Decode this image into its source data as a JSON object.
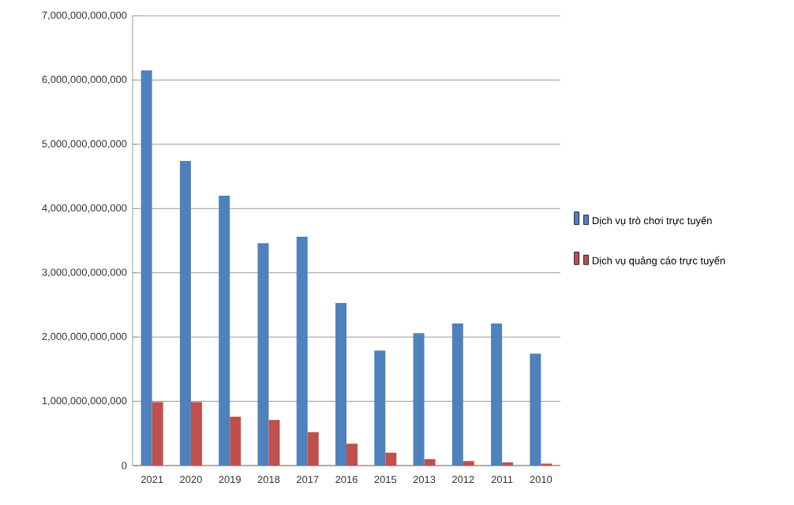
{
  "chart_data": {
    "type": "bar",
    "categories": [
      "2021",
      "2020",
      "2019",
      "2018",
      "2017",
      "2016",
      "2015",
      "2013",
      "2012",
      "2011",
      "2010"
    ],
    "series": [
      {
        "name": "Dịch vụ trò chơi trực tuyến",
        "color": "#4f81bd",
        "values": [
          6150000000000,
          4740000000000,
          4200000000000,
          3460000000000,
          3560000000000,
          2530000000000,
          1790000000000,
          2060000000000,
          2210000000000,
          2210000000000,
          1740000000000
        ]
      },
      {
        "name": "Dịch vụ quảng cáo trực tuyến",
        "color": "#c0504d",
        "values": [
          990000000000,
          990000000000,
          760000000000,
          710000000000,
          520000000000,
          340000000000,
          200000000000,
          100000000000,
          70000000000,
          50000000000,
          30000000000
        ]
      }
    ],
    "ylim": [
      0,
      7000000000000
    ],
    "yticks": [
      {
        "value": 0,
        "label": "0"
      },
      {
        "value": 1000000000000,
        "label": "1,000,000,000,000"
      },
      {
        "value": 2000000000000,
        "label": "2,000,000,000,000"
      },
      {
        "value": 3000000000000,
        "label": "3,000,000,000,000"
      },
      {
        "value": 4000000000000,
        "label": "4,000,000,000,000"
      },
      {
        "value": 5000000000000,
        "label": "5,000,000,000,000"
      },
      {
        "value": 6000000000000,
        "label": "6,000,000,000,000"
      },
      {
        "value": 7000000000000,
        "label": "7,000,000,000,000"
      }
    ],
    "grid": "y",
    "legend": "right"
  }
}
